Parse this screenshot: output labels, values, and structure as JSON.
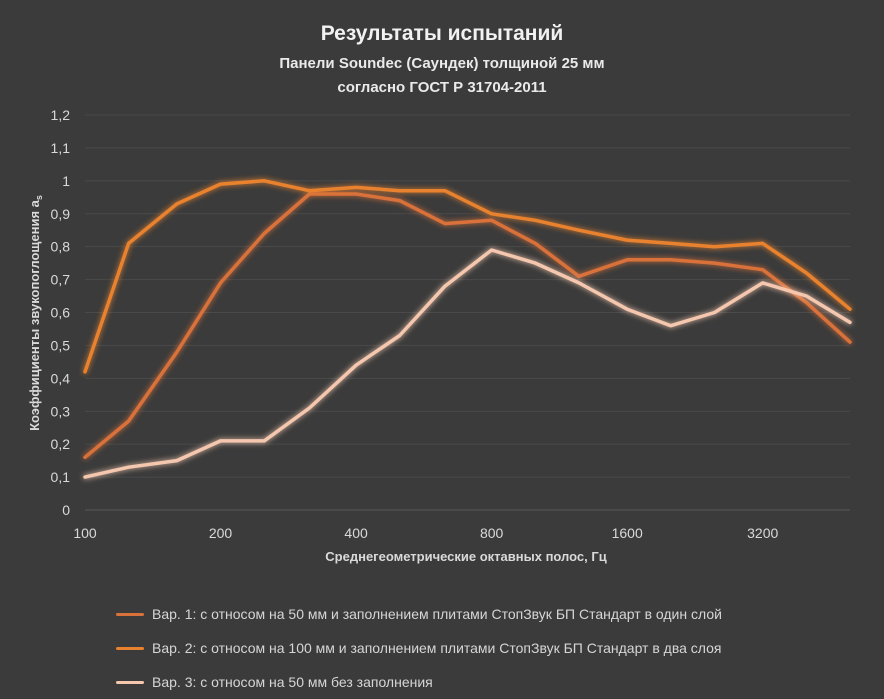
{
  "chart_data": {
    "type": "line",
    "title": "Результаты испытаний",
    "subtitle_lines": [
      "Панели Soundec (Саундек) толщиной 25 мм",
      "согласно ГОСТ Р 31704-2011"
    ],
    "xlabel": "Среднегеометрические октавных полос, Гц",
    "ylabel": "Коэффициенты звукопоглощения a",
    "ylabel_subscript": "s",
    "x": [
      100,
      125,
      160,
      200,
      250,
      315,
      400,
      500,
      630,
      800,
      1000,
      1250,
      1600,
      2000,
      2500,
      3200,
      4000,
      5000
    ],
    "x_tick_labels": [
      "100",
      "200",
      "400",
      "800",
      "1600",
      "3200"
    ],
    "x_tick_values": [
      100,
      200,
      400,
      800,
      1600,
      3200
    ],
    "x_scale": "log",
    "xlim": [
      100,
      5000
    ],
    "ylim": [
      0,
      1.2
    ],
    "y_ticks": [
      0,
      0.1,
      0.2,
      0.3,
      0.4,
      0.5,
      0.6,
      0.7,
      0.8,
      0.9,
      1.0,
      1.1,
      1.2
    ],
    "y_tick_labels": [
      "0",
      "0,1",
      "0,2",
      "0,3",
      "0,4",
      "0,5",
      "0,6",
      "0,7",
      "0,8",
      "0,9",
      "1",
      "1,1",
      "1,2"
    ],
    "grid": "horizontal",
    "legend_position": "bottom",
    "series": [
      {
        "name": "Вар. 1: с относом на 50 мм и заполнением плитами СтопЗвук БП Стандарт в один слой",
        "color": "#d9713a",
        "values": [
          0.16,
          0.27,
          0.48,
          0.69,
          0.84,
          0.96,
          0.96,
          0.94,
          0.87,
          0.88,
          0.81,
          0.71,
          0.76,
          0.76,
          0.75,
          0.73,
          0.63,
          0.51
        ]
      },
      {
        "name": "Вар. 2: с относом на 100 мм и заполнением плитами СтопЗвук БП Стандарт в два слоя",
        "color": "#e8822e",
        "values": [
          0.42,
          0.81,
          0.93,
          0.99,
          1.0,
          0.97,
          0.98,
          0.97,
          0.97,
          0.9,
          0.88,
          0.85,
          0.82,
          0.81,
          0.8,
          0.81,
          0.72,
          0.61
        ]
      },
      {
        "name": "Вар. 3: с относом на 50 мм без заполнения",
        "color": "#f4c7ae",
        "values": [
          0.1,
          0.13,
          0.15,
          0.21,
          0.21,
          0.31,
          0.44,
          0.53,
          0.68,
          0.79,
          0.75,
          0.69,
          0.61,
          0.56,
          0.6,
          0.69,
          0.65,
          0.57
        ]
      }
    ]
  }
}
